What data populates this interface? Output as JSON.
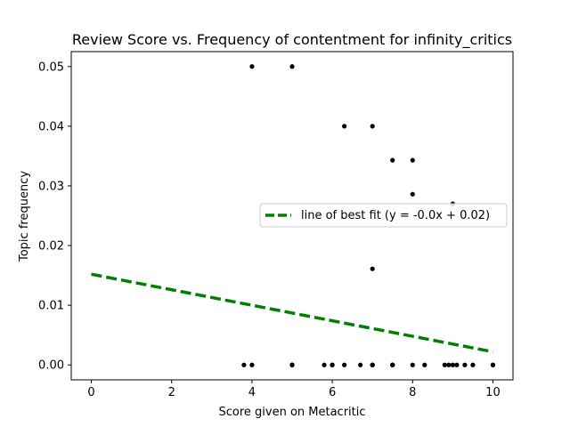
{
  "chart_data": {
    "type": "scatter",
    "title": "Review Score vs. Frequency of contentment for infinity_critics",
    "xlabel": "Score given on Metacritic",
    "ylabel": "Topic frequency",
    "xlim": [
      -0.5,
      10.5
    ],
    "ylim": [
      -0.0025,
      0.0525
    ],
    "x_ticks": [
      "0",
      "2",
      "4",
      "6",
      "8",
      "10"
    ],
    "y_ticks": [
      "0.00",
      "0.01",
      "0.02",
      "0.03",
      "0.04",
      "0.05"
    ],
    "grid": false,
    "legend_position": "center-right",
    "point_color": "#000000",
    "fit_color": "#008000",
    "series": [
      {
        "kind": "points",
        "x": [
          4,
          5,
          6.3,
          7,
          7.5,
          8,
          8,
          9,
          7,
          3.8,
          4,
          5,
          5,
          5,
          5.8,
          6,
          6,
          6.3,
          6.7,
          7,
          7,
          7,
          7.5,
          7.5,
          7.5,
          8,
          8.3,
          8.8,
          8.9,
          9,
          9.1,
          9.3,
          9.5,
          10,
          10
        ],
        "y": [
          0.05,
          0.05,
          0.04,
          0.04,
          0.0343,
          0.0343,
          0.0286,
          0.027,
          0.0161,
          0,
          0,
          0,
          0,
          0,
          0,
          0,
          0,
          0,
          0,
          0,
          0,
          0,
          0,
          0,
          0,
          0,
          0,
          0,
          0,
          0,
          0,
          0,
          0,
          0,
          0
        ]
      },
      {
        "kind": "fit",
        "name": "line of best fit (y = -0.0x + 0.02)",
        "x": [
          0,
          10
        ],
        "y": [
          0.0152,
          0.0022
        ]
      }
    ]
  }
}
